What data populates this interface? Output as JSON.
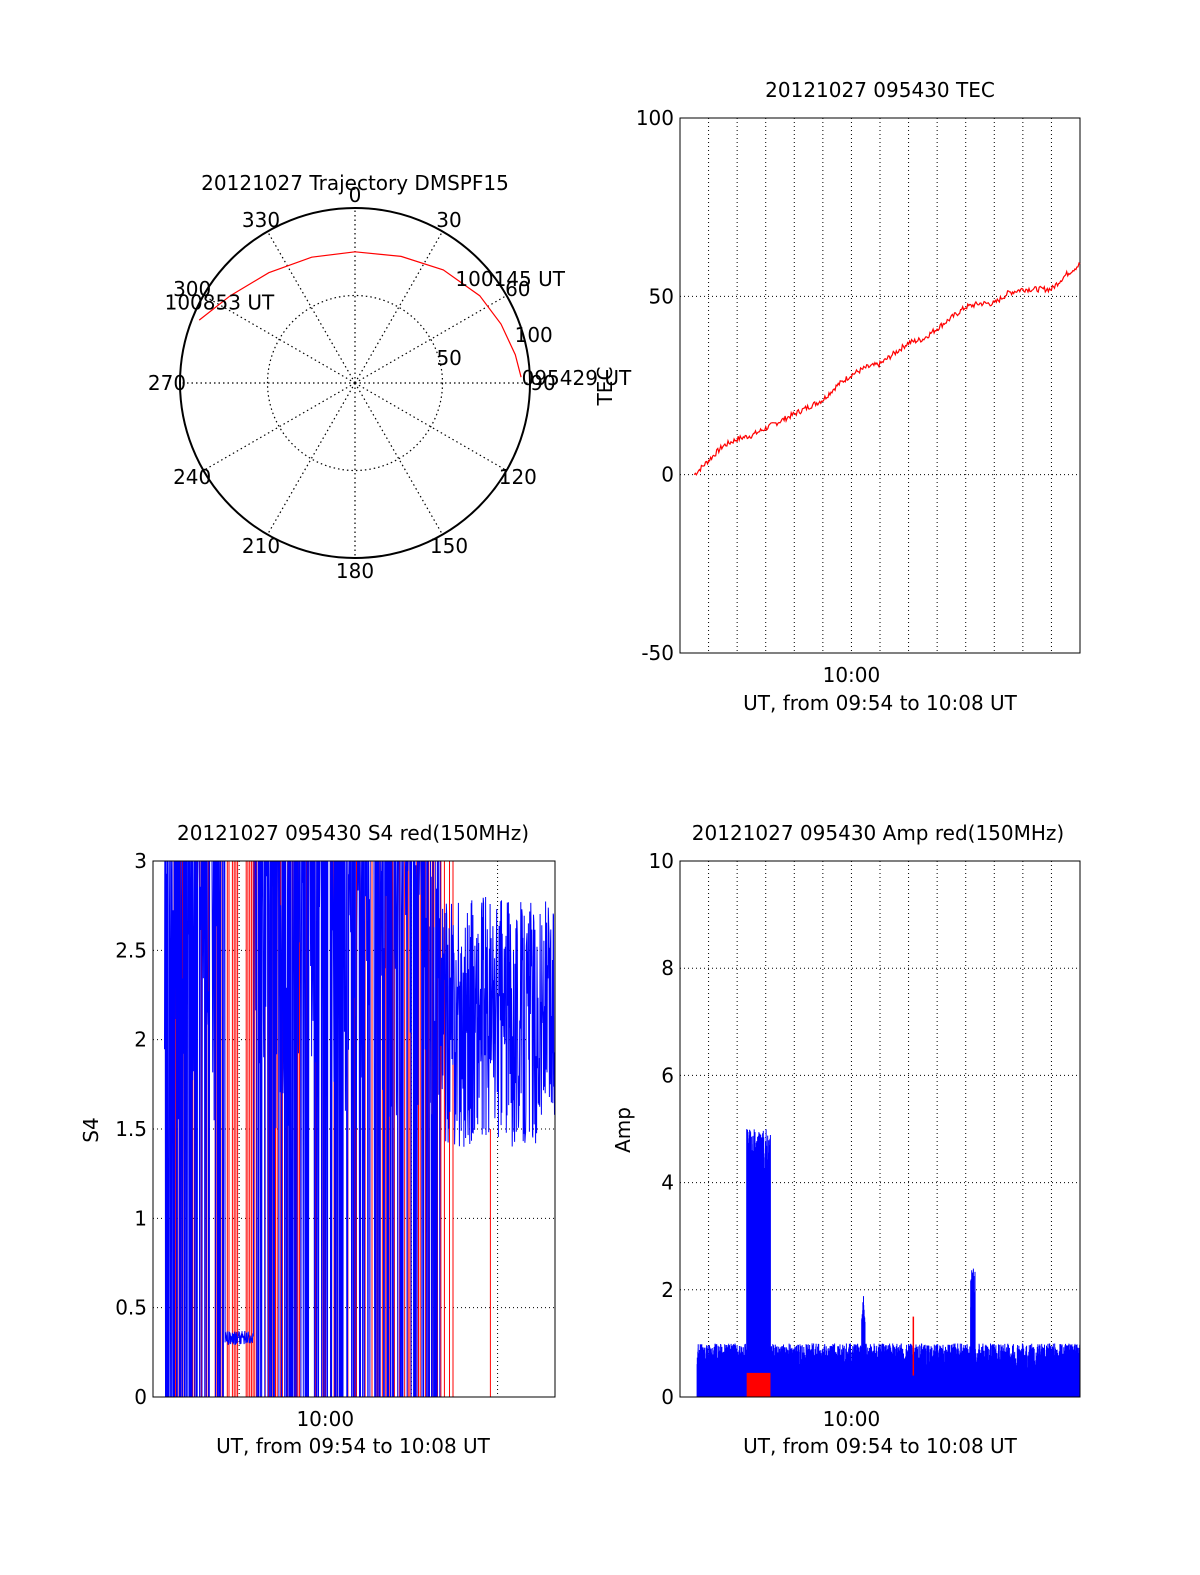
{
  "colors": {
    "red": "#ff0000",
    "blue": "#0000ff",
    "axis": "#000000",
    "grid": "#000000"
  },
  "chart_data": [
    {
      "id": "polar",
      "type": "polar",
      "title": "20121027 Trajectory DMSPF15",
      "azimuth_labels": [
        "0",
        "30",
        "60",
        "90",
        "120",
        "150",
        "180",
        "210",
        "240",
        "270",
        "300",
        "330"
      ],
      "radial_labels": [
        "50",
        "100"
      ],
      "rlim": [
        0,
        100
      ],
      "grid": true,
      "trajectory": {
        "color": "red",
        "points": [
          {
            "az": 292,
            "r": 96
          },
          {
            "az": 305,
            "r": 87
          },
          {
            "az": 322,
            "r": 80
          },
          {
            "az": 341,
            "r": 76
          },
          {
            "az": 0,
            "r": 75
          },
          {
            "az": 20,
            "r": 77
          },
          {
            "az": 38,
            "r": 82
          },
          {
            "az": 55,
            "r": 87
          },
          {
            "az": 68,
            "r": 90
          },
          {
            "az": 80,
            "r": 93
          },
          {
            "az": 88,
            "r": 95
          }
        ]
      },
      "annotations": [
        {
          "text": "100853 UT",
          "az": 302,
          "r": 88
        },
        {
          "text": "100145 UT",
          "az": 45,
          "r": 85
        },
        {
          "text": "095429 UT",
          "az": 88,
          "r": 98
        }
      ]
    },
    {
      "id": "tec",
      "type": "line",
      "title": "20121027 095430 TEC",
      "xlabel": "UT, from 09:54 to 10:08 UT",
      "ylabel": "TEC",
      "xlim": [
        "09:54",
        "10:08"
      ],
      "ylim": [
        -50,
        100
      ],
      "yticks": [
        -50,
        0,
        50,
        100
      ],
      "xticks": [
        "10:00"
      ],
      "grid": true,
      "series": [
        {
          "color": "red",
          "x": [
            "09:54:30",
            "09:55:00",
            "09:55:30",
            "09:56:00",
            "09:56:30",
            "09:57:00",
            "09:57:30",
            "09:58:00",
            "09:58:30",
            "09:59:00",
            "09:59:30",
            "10:00:00",
            "10:00:30",
            "10:01:00",
            "10:01:30",
            "10:02:00",
            "10:02:30",
            "10:03:00",
            "10:03:30",
            "10:04:00",
            "10:04:30",
            "10:05:00",
            "10:05:30",
            "10:06:00",
            "10:06:30",
            "10:07:00",
            "10:07:30",
            "10:08:00"
          ],
          "y": [
            0,
            4,
            8,
            10,
            11,
            13,
            15,
            17,
            19,
            21,
            25,
            28,
            30,
            31,
            34,
            37,
            38,
            41,
            44,
            47,
            48,
            48,
            51,
            52,
            52,
            52,
            56,
            59
          ]
        }
      ]
    },
    {
      "id": "s4",
      "type": "line",
      "title": "20121027 095430 S4 red(150MHz)",
      "xlabel": "UT, from 09:54 to 10:08 UT",
      "ylabel": "S4",
      "xlim": [
        "09:54",
        "10:08"
      ],
      "ylim": [
        0,
        3
      ],
      "yticks": [
        "0",
        "0.5",
        "1",
        "1.5",
        "2",
        "2.5",
        "3"
      ],
      "xticks": [
        "10:00"
      ],
      "grid": true,
      "series": [
        {
          "name": "",
          "color": "red",
          "note_visible": false
        },
        {
          "name": "",
          "color": "blue",
          "note_visible": false
        }
      ]
    },
    {
      "id": "amp",
      "type": "line",
      "title": "20121027 095430 Amp red(150MHz)",
      "xlabel": "UT, from 09:54 to 10:08 UT",
      "ylabel": "Amp",
      "xlim": [
        "09:54",
        "10:08"
      ],
      "ylim": [
        0,
        10
      ],
      "yticks": [
        0,
        2,
        4,
        6,
        8,
        10
      ],
      "xticks": [
        "10:00"
      ],
      "grid": true,
      "series": [
        {
          "name": "",
          "color": "blue"
        },
        {
          "name": "",
          "color": "red"
        }
      ]
    }
  ]
}
